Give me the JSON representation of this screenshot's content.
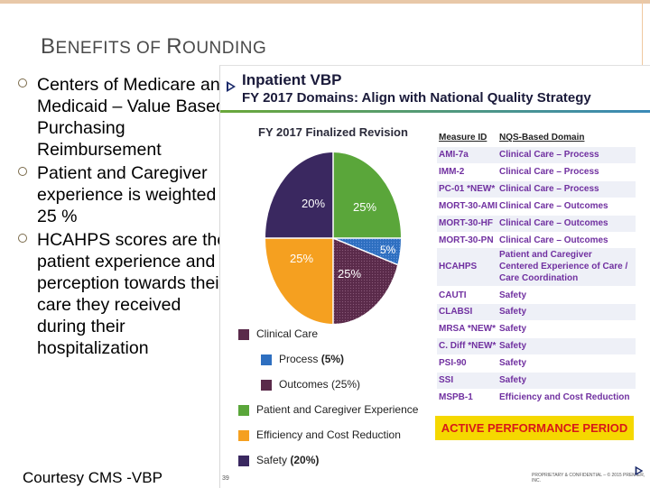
{
  "slide": {
    "title_parts": [
      "B",
      "ENEFITS OF ",
      "R",
      "OUNDING"
    ],
    "bullets": [
      "Centers of Medicare and Medicaid – Value Based Purchasing Reimbursement",
      "Patient and Caregiver experience is weighted - 25 %",
      "HCAHPS scores are the patient experience and perception towards their care they received during their hospitalization"
    ],
    "courtesy": "Courtesy CMS -VBP"
  },
  "panel": {
    "title1": "Inpatient VBP",
    "title2": "FY 2017 Domains: Align with National Quality Strategy",
    "finalized": "FY 2017 Finalized Revision",
    "pie_labels": {
      "green": "25%",
      "blue": "5%",
      "purple": "25%",
      "orange": "25%",
      "navy": "20%"
    },
    "legend": [
      "Clinical Care",
      "Process",
      "(5%)",
      "Outcomes (25%)",
      "Patient and Caregiver Experience",
      "Efficiency and Cost Reduction",
      "Safety",
      "(20%)"
    ],
    "table": {
      "headers": [
        "Measure ID",
        "NQS-Based Domain"
      ],
      "rows": [
        [
          "AMI-7a",
          "Clinical Care – Process"
        ],
        [
          "IMM-2",
          "Clinical Care – Process"
        ],
        [
          "PC-01 *NEW*",
          "Clinical Care – Process"
        ],
        [
          "MORT-30-AMI",
          "Clinical Care – Outcomes"
        ],
        [
          "MORT-30-HF",
          "Clinical Care – Outcomes"
        ],
        [
          "MORT-30-PN",
          "Clinical Care – Outcomes"
        ],
        [
          "HCAHPS",
          "Patient and Caregiver Centered Experience of Care / Care Coordination"
        ],
        [
          "CAUTI",
          "Safety"
        ],
        [
          "CLABSI",
          "Safety"
        ],
        [
          "MRSA *NEW*",
          "Safety"
        ],
        [
          "C. Diff *NEW*",
          "Safety"
        ],
        [
          "PSI-90",
          "Safety"
        ],
        [
          "SSI",
          "Safety"
        ],
        [
          "MSPB-1",
          "Efficiency and Cost Reduction"
        ]
      ]
    },
    "active_period": "ACTIVE PERFORMANCE PERIOD",
    "page_num": "39",
    "confidential": "PROPRIETARY & CONFIDENTIAL – © 2015 PREMIER, INC.",
    "colors": {
      "green": "#5aa63a",
      "blue": "#2e6fc0",
      "purple": "#5a2a4a",
      "orange": "#f5a020",
      "navy": "#3a2860",
      "measure_text": "#7030a0"
    }
  }
}
